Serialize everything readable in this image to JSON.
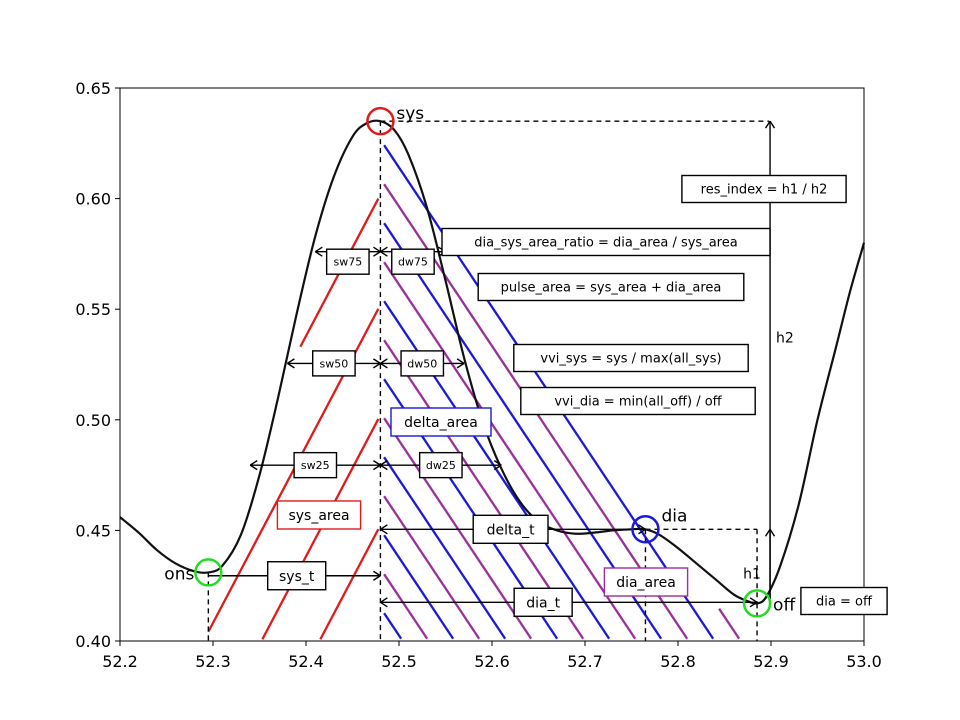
{
  "chart_data": {
    "type": "line",
    "xlim": [
      52.2,
      53.0
    ],
    "ylim": [
      0.4,
      0.65
    ],
    "x_ticks": [
      52.2,
      52.3,
      52.4,
      52.5,
      52.6,
      52.7,
      52.8,
      52.9,
      53.0
    ],
    "y_ticks": [
      0.4,
      0.45,
      0.5,
      0.55,
      0.6,
      0.65
    ],
    "x_tick_labels": [
      "52.2",
      "52.3",
      "52.4",
      "52.5",
      "52.6",
      "52.7",
      "52.8",
      "52.9",
      "53.0"
    ],
    "y_tick_labels": [
      "0.40",
      "0.45",
      "0.50",
      "0.55",
      "0.60",
      "0.65"
    ],
    "grid": false,
    "curve": [
      [
        52.2,
        0.456
      ],
      [
        52.22,
        0.449
      ],
      [
        52.24,
        0.441
      ],
      [
        52.26,
        0.435
      ],
      [
        52.28,
        0.4315
      ],
      [
        52.295,
        0.431
      ],
      [
        52.31,
        0.434
      ],
      [
        52.33,
        0.448
      ],
      [
        52.35,
        0.475
      ],
      [
        52.37,
        0.51
      ],
      [
        52.39,
        0.548
      ],
      [
        52.41,
        0.583
      ],
      [
        52.43,
        0.61
      ],
      [
        52.45,
        0.628
      ],
      [
        52.465,
        0.634
      ],
      [
        52.48,
        0.635
      ],
      [
        52.495,
        0.631
      ],
      [
        52.51,
        0.62
      ],
      [
        52.53,
        0.596
      ],
      [
        52.55,
        0.563
      ],
      [
        52.57,
        0.528
      ],
      [
        52.59,
        0.499
      ],
      [
        52.61,
        0.478
      ],
      [
        52.63,
        0.463
      ],
      [
        52.65,
        0.454
      ],
      [
        52.67,
        0.45
      ],
      [
        52.69,
        0.4485
      ],
      [
        52.71,
        0.449
      ],
      [
        52.73,
        0.45
      ],
      [
        52.75,
        0.4505
      ],
      [
        52.765,
        0.4505
      ],
      [
        52.78,
        0.448
      ],
      [
        52.8,
        0.442
      ],
      [
        52.82,
        0.435
      ],
      [
        52.84,
        0.428
      ],
      [
        52.86,
        0.421
      ],
      [
        52.875,
        0.418
      ],
      [
        52.885,
        0.417
      ],
      [
        52.895,
        0.42
      ],
      [
        52.91,
        0.434
      ],
      [
        52.93,
        0.462
      ],
      [
        52.95,
        0.5
      ],
      [
        52.97,
        0.533
      ],
      [
        52.985,
        0.558
      ],
      [
        53.0,
        0.58
      ]
    ],
    "points": [
      {
        "id": "sys",
        "label": "sys",
        "x": 52.48,
        "y": 0.635,
        "color": "#e01b1b"
      },
      {
        "id": "ons",
        "label": "ons",
        "x": 52.295,
        "y": 0.431,
        "color": "#22dd22"
      },
      {
        "id": "dia",
        "label": "dia",
        "x": 52.765,
        "y": 0.4505,
        "color": "#1a1ad8"
      },
      {
        "id": "off",
        "label": "off",
        "x": 52.885,
        "y": 0.417,
        "color": "#22dd22"
      }
    ],
    "widths": [
      {
        "name": "sw75",
        "label": "sw75",
        "y": 0.576,
        "x1": 52.41,
        "x2": 52.48,
        "label_x": 52.445
      },
      {
        "name": "dw75",
        "label": "dw75",
        "y": 0.576,
        "x1": 52.48,
        "x2": 52.55,
        "label_x": 52.515
      },
      {
        "name": "sw50",
        "label": "sw50",
        "y": 0.5255,
        "x1": 52.38,
        "x2": 52.48,
        "label_x": 52.43
      },
      {
        "name": "dw50",
        "label": "dw50",
        "y": 0.5255,
        "x1": 52.48,
        "x2": 52.57,
        "label_x": 52.525
      },
      {
        "name": "sw25",
        "label": "sw25",
        "y": 0.4795,
        "x1": 52.34,
        "x2": 52.48,
        "label_x": 52.41
      },
      {
        "name": "dw25",
        "label": "dw25",
        "y": 0.4795,
        "x1": 52.48,
        "x2": 52.61,
        "label_x": 52.545
      }
    ],
    "intervals": [
      {
        "name": "sys_t",
        "label": "sys_t",
        "y": 0.4295,
        "x1": 52.295,
        "x2": 52.48,
        "label_x": 52.39
      },
      {
        "name": "delta_t",
        "label": "delta_t",
        "y": 0.4505,
        "x1": 52.48,
        "x2": 52.765,
        "label_x": 52.62
      },
      {
        "name": "dia_t",
        "label": "dia_t",
        "y": 0.4175,
        "x1": 52.48,
        "x2": 52.885,
        "label_x": 52.655
      }
    ],
    "heights": [
      {
        "name": "h1",
        "label": "h1",
        "x": 52.885,
        "y1": 0.417,
        "y2": 0.4505
      },
      {
        "name": "h2",
        "label": "h2",
        "x": 52.885,
        "y1": 0.417,
        "y2": 0.635
      }
    ],
    "annotations": {
      "res_index": "res_index = h1 / h2",
      "dia_sys_area_ratio": "dia_sys_area_ratio = dia_area / sys_area",
      "pulse_area": "pulse_area = sys_area + dia_area",
      "vvi_sys": "vvi_sys = sys / max(all_sys)",
      "vvi_dia": "vvi_dia = min(all_off) / off",
      "delta_area": "delta_area",
      "sys_area": "sys_area",
      "dia_area": "dia_area",
      "dia_off": "dia = off"
    },
    "colors": {
      "curve": "#111111",
      "sys_area": "#e01b1b",
      "delta_area": "#1a1ad8",
      "dia_area": "#9b2f9b",
      "onset_offset": "#22dd22"
    }
  }
}
